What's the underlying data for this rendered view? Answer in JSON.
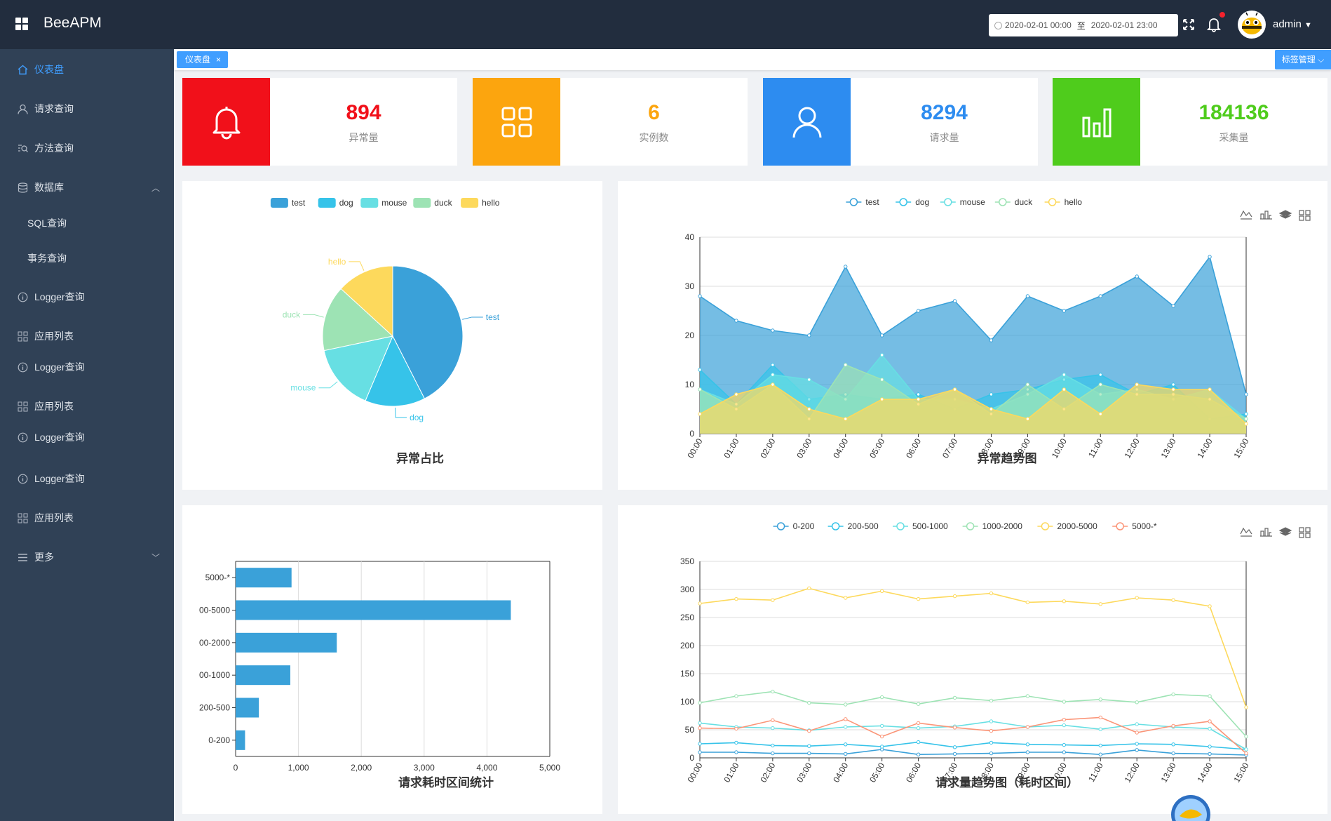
{
  "header": {
    "app_title": "BeeAPM",
    "date_start": "2020-02-01 00:00",
    "date_sep": "至",
    "date_end": "2020-02-01 23:00",
    "user_name": "admin"
  },
  "sidebar": {
    "items": [
      {
        "label": "仪表盘",
        "icon": "home-icon",
        "active": true
      },
      {
        "label": "请求查询",
        "icon": "user-icon"
      },
      {
        "label": "方法查询",
        "icon": "search-list-icon"
      },
      {
        "label": "数据库",
        "icon": "database-icon"
      },
      {
        "label": "SQL查询"
      },
      {
        "label": "事务查询"
      },
      {
        "label": "Logger查询",
        "icon": "info-icon"
      },
      {
        "label": "应用列表",
        "icon": "grid-icon"
      },
      {
        "label": "Logger查询",
        "icon": "info-icon"
      },
      {
        "label": "应用列表",
        "icon": "grid-icon"
      },
      {
        "label": "Logger查询",
        "icon": "info-icon"
      },
      {
        "label": "Logger查询",
        "icon": "info-icon"
      },
      {
        "label": "应用列表",
        "icon": "grid-icon"
      },
      {
        "label": "更多",
        "icon": "menu-icon"
      }
    ]
  },
  "tags": {
    "active_tag": "仪表盘",
    "close": "×",
    "manage_label": "标签管理"
  },
  "stats": [
    {
      "value": "894",
      "label": "异常量",
      "color": "#f1101a",
      "icon": "bell-icon"
    },
    {
      "value": "6",
      "label": "实例数",
      "color": "#fca50e",
      "icon": "apps-icon"
    },
    {
      "value": "8294",
      "label": "请求量",
      "color": "#2d8cf0",
      "icon": "person-icon"
    },
    {
      "value": "184136",
      "label": "采集量",
      "color": "#4fcc1c",
      "icon": "bar-chart-icon"
    }
  ],
  "colors": {
    "test": "#3aa1d9",
    "dog": "#36c3e9",
    "mouse": "#67dfe3",
    "duck": "#9de3b4",
    "hello": "#fdd95c",
    "r0": "#3aa1d9",
    "r1": "#36c3e9",
    "r2": "#67dfe3",
    "r3": "#9de3b4",
    "r4": "#fdd95c",
    "r5": "#fb9578"
  },
  "chart_data": [
    {
      "type": "pie",
      "title": "异常占比",
      "legend_position": "top-center",
      "series": [
        {
          "name": "test",
          "value": 380
        },
        {
          "name": "dog",
          "value": 124
        },
        {
          "name": "mouse",
          "value": 137
        },
        {
          "name": "duck",
          "value": 135
        },
        {
          "name": "hello",
          "value": 118
        }
      ]
    },
    {
      "type": "area",
      "title": "异常趋势图",
      "legend_position": "top-center",
      "toolbox": [
        "line-icon",
        "bar-icon",
        "stack-icon",
        "tile-icon"
      ],
      "x": [
        "00:00",
        "01:00",
        "02:00",
        "03:00",
        "04:00",
        "05:00",
        "06:00",
        "07:00",
        "08:00",
        "09:00",
        "10:00",
        "11:00",
        "12:00",
        "13:00",
        "14:00",
        "15:00"
      ],
      "ylim": [
        0,
        40
      ],
      "yticks": [
        0,
        10,
        20,
        30,
        40
      ],
      "series": [
        {
          "name": "test",
          "values": [
            28,
            23,
            21,
            20,
            34,
            20,
            25,
            27,
            19,
            28,
            25,
            28,
            32,
            26,
            36,
            8
          ]
        },
        {
          "name": "dog",
          "values": [
            13,
            6,
            14,
            7,
            8,
            7,
            8,
            5,
            8,
            9,
            11,
            12,
            8,
            10,
            3,
            4
          ]
        },
        {
          "name": "mouse",
          "values": [
            9,
            6,
            12,
            11,
            7,
            16,
            7,
            7,
            5,
            8,
            12,
            8,
            9,
            7,
            9,
            3
          ]
        },
        {
          "name": "duck",
          "values": [
            9,
            5,
            10,
            3,
            14,
            11,
            6,
            9,
            4,
            10,
            5,
            10,
            8,
            8,
            7,
            3
          ]
        },
        {
          "name": "hello",
          "values": [
            4,
            8,
            10,
            5,
            3,
            7,
            7,
            9,
            5,
            3,
            9,
            4,
            10,
            9,
            9,
            2
          ]
        }
      ]
    },
    {
      "type": "bar",
      "title": "请求耗时区间统计",
      "orientation": "horizontal",
      "categories": [
        "0-200",
        "200-500",
        "00-1000",
        "00-2000",
        "00-5000",
        "5000-*"
      ],
      "values": [
        150,
        370,
        870,
        1610,
        4380,
        890
      ],
      "xlim": [
        0,
        5000
      ],
      "xticks": [
        "0",
        "1,000",
        "2,000",
        "3,000",
        "4,000",
        "5,000"
      ]
    },
    {
      "type": "line",
      "title": "请求量趋势图（耗时区间）",
      "legend_position": "top-center",
      "toolbox": [
        "line-icon",
        "bar-icon",
        "stack-icon",
        "tile-icon"
      ],
      "x": [
        "00:00",
        "01:00",
        "02:00",
        "03:00",
        "04:00",
        "05:00",
        "06:00",
        "07:00",
        "08:00",
        "09:00",
        "10:00",
        "11:00",
        "12:00",
        "13:00",
        "14:00",
        "15:00"
      ],
      "ylim": [
        0,
        350
      ],
      "yticks": [
        0,
        50,
        100,
        150,
        200,
        250,
        300,
        350
      ],
      "series": [
        {
          "name": "0-200",
          "values": [
            10,
            10,
            8,
            8,
            7,
            15,
            6,
            7,
            8,
            10,
            10,
            6,
            14,
            8,
            7,
            5
          ]
        },
        {
          "name": "200-500",
          "values": [
            25,
            27,
            22,
            21,
            24,
            20,
            28,
            19,
            27,
            24,
            23,
            22,
            25,
            24,
            20,
            15
          ]
        },
        {
          "name": "500-1000",
          "values": [
            62,
            55,
            53,
            49,
            55,
            57,
            53,
            56,
            65,
            55,
            58,
            51,
            60,
            55,
            52,
            15
          ]
        },
        {
          "name": "1000-2000",
          "values": [
            98,
            110,
            118,
            98,
            95,
            108,
            96,
            107,
            102,
            110,
            100,
            104,
            99,
            113,
            110,
            38
          ]
        },
        {
          "name": "2000-5000",
          "values": [
            275,
            283,
            281,
            302,
            285,
            297,
            283,
            288,
            293,
            277,
            279,
            274,
            285,
            281,
            270,
            90
          ]
        },
        {
          "name": "5000-*",
          "values": [
            53,
            52,
            67,
            48,
            69,
            38,
            62,
            54,
            48,
            55,
            68,
            72,
            45,
            57,
            65,
            8
          ]
        }
      ]
    }
  ]
}
